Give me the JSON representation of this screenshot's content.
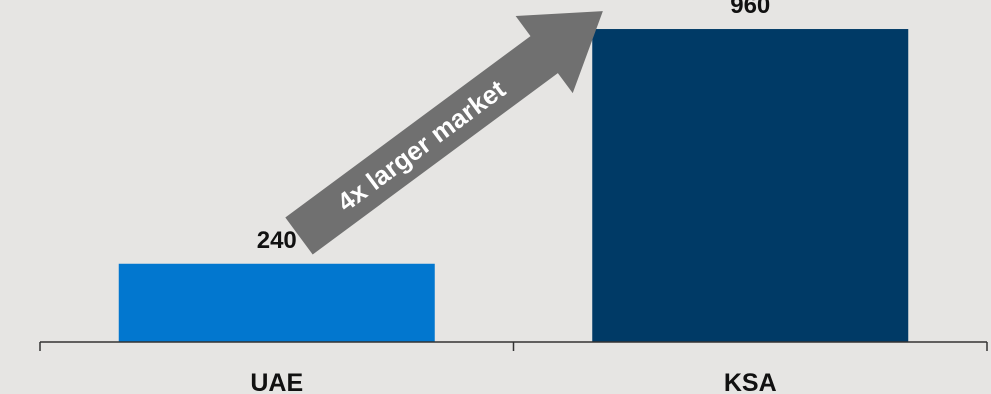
{
  "chart_data": {
    "type": "bar",
    "categories": [
      "UAE",
      "KSA"
    ],
    "values": [
      240,
      960
    ],
    "data_labels": [
      "240",
      "960"
    ],
    "title": "",
    "xlabel": "",
    "ylabel": "",
    "ylim": [
      0,
      1000
    ],
    "grid": false,
    "legend": "none",
    "annotation": "4x larger market"
  },
  "colors": {
    "background": "#e6e5e3",
    "bars": [
      "#0277cf",
      "#003a66"
    ],
    "axis": "#333333",
    "arrow": "#707070",
    "annotation_text": "#ffffff"
  }
}
